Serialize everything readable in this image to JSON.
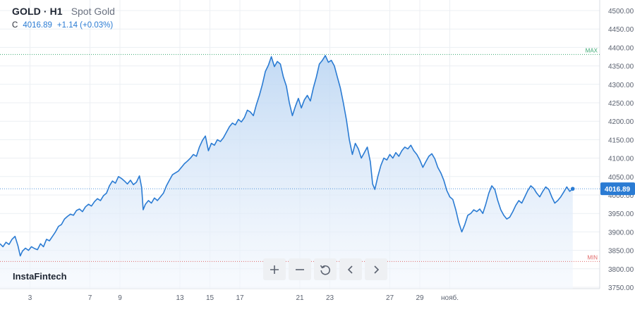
{
  "header": {
    "symbol": "GOLD · H1",
    "description": "Spot Gold",
    "close_label": "C",
    "close_value": "4016.89",
    "change": "+1.14 (+0.03%)"
  },
  "brand": {
    "name": "InstaFintech"
  },
  "toolbar": {
    "buttons": [
      {
        "icon": "plus-icon"
      },
      {
        "icon": "minus-icon"
      },
      {
        "icon": "reset-icon"
      },
      {
        "icon": "chevron-left-icon"
      },
      {
        "icon": "chevron-right-icon"
      }
    ]
  },
  "colors": {
    "line": "#2a7bd3",
    "fill_top": "#bcd6f3",
    "fill_bottom": "#f3f7fd",
    "max": "#3aa872",
    "min": "#e06a6a",
    "grid": "#eceff3",
    "last_price_bg": "#2a7bd3"
  },
  "chart_data": {
    "type": "area",
    "title": "",
    "xlabel": "",
    "ylabel": "",
    "ylim": [
      3750,
      4500
    ],
    "y_ticks": [
      "4500.00",
      "4450.00",
      "4400.00",
      "4350.00",
      "4300.00",
      "4250.00",
      "4200.00",
      "4150.00",
      "4100.00",
      "4050.00",
      "4000.00",
      "3950.00",
      "3900.00",
      "3850.00",
      "3800.00",
      "3750.00"
    ],
    "x_ticks": [
      {
        "label": "3",
        "x": 3
      },
      {
        "label": "7",
        "x": 7
      },
      {
        "label": "9",
        "x": 9
      },
      {
        "label": "13",
        "x": 13
      },
      {
        "label": "15",
        "x": 15
      },
      {
        "label": "17",
        "x": 17
      },
      {
        "label": "21",
        "x": 21
      },
      {
        "label": "23",
        "x": 23
      },
      {
        "label": "27",
        "x": 27
      },
      {
        "label": "29",
        "x": 29
      },
      {
        "label": "нояб.",
        "x": 31
      }
    ],
    "max_label": "MAX",
    "max_value": 4381,
    "min_label": "MIN",
    "min_value": 3820,
    "last_value": 4016.89,
    "last_label": "4016.89",
    "grid": true,
    "series": [
      {
        "points": [
          [
            1.0,
            3868
          ],
          [
            1.2,
            3860
          ],
          [
            1.4,
            3872
          ],
          [
            1.6,
            3866
          ],
          [
            1.8,
            3880
          ],
          [
            2.0,
            3888
          ],
          [
            2.2,
            3862
          ],
          [
            2.35,
            3835
          ],
          [
            2.5,
            3848
          ],
          [
            2.7,
            3856
          ],
          [
            2.9,
            3850
          ],
          [
            3.1,
            3860
          ],
          [
            3.3,
            3855
          ],
          [
            3.5,
            3852
          ],
          [
            3.7,
            3868
          ],
          [
            3.9,
            3860
          ],
          [
            4.1,
            3880
          ],
          [
            4.3,
            3876
          ],
          [
            4.5,
            3888
          ],
          [
            4.7,
            3900
          ],
          [
            4.9,
            3915
          ],
          [
            5.1,
            3920
          ],
          [
            5.3,
            3935
          ],
          [
            5.5,
            3942
          ],
          [
            5.7,
            3948
          ],
          [
            5.9,
            3945
          ],
          [
            6.1,
            3958
          ],
          [
            6.3,
            3962
          ],
          [
            6.5,
            3955
          ],
          [
            6.7,
            3968
          ],
          [
            6.9,
            3975
          ],
          [
            7.1,
            3970
          ],
          [
            7.3,
            3982
          ],
          [
            7.5,
            3990
          ],
          [
            7.7,
            3985
          ],
          [
            7.9,
            3998
          ],
          [
            8.1,
            4005
          ],
          [
            8.3,
            4025
          ],
          [
            8.5,
            4038
          ],
          [
            8.7,
            4032
          ],
          [
            8.9,
            4050
          ],
          [
            9.1,
            4045
          ],
          [
            9.3,
            4038
          ],
          [
            9.5,
            4030
          ],
          [
            9.7,
            4040
          ],
          [
            9.9,
            4028
          ],
          [
            10.1,
            4035
          ],
          [
            10.3,
            4052
          ],
          [
            10.45,
            4020
          ],
          [
            10.55,
            3960
          ],
          [
            10.7,
            3975
          ],
          [
            10.9,
            3985
          ],
          [
            11.1,
            3978
          ],
          [
            11.3,
            3992
          ],
          [
            11.5,
            3985
          ],
          [
            11.7,
            3995
          ],
          [
            11.9,
            4005
          ],
          [
            12.1,
            4025
          ],
          [
            12.3,
            4040
          ],
          [
            12.5,
            4055
          ],
          [
            12.7,
            4060
          ],
          [
            12.9,
            4065
          ],
          [
            13.1,
            4075
          ],
          [
            13.3,
            4085
          ],
          [
            13.5,
            4092
          ],
          [
            13.7,
            4100
          ],
          [
            13.9,
            4110
          ],
          [
            14.1,
            4105
          ],
          [
            14.3,
            4130
          ],
          [
            14.5,
            4148
          ],
          [
            14.7,
            4160
          ],
          [
            14.9,
            4120
          ],
          [
            15.1,
            4140
          ],
          [
            15.3,
            4135
          ],
          [
            15.5,
            4150
          ],
          [
            15.7,
            4145
          ],
          [
            15.9,
            4155
          ],
          [
            16.1,
            4170
          ],
          [
            16.3,
            4185
          ],
          [
            16.5,
            4195
          ],
          [
            16.7,
            4190
          ],
          [
            16.9,
            4205
          ],
          [
            17.1,
            4198
          ],
          [
            17.3,
            4210
          ],
          [
            17.5,
            4230
          ],
          [
            17.7,
            4225
          ],
          [
            17.9,
            4215
          ],
          [
            18.1,
            4245
          ],
          [
            18.3,
            4270
          ],
          [
            18.5,
            4300
          ],
          [
            18.7,
            4335
          ],
          [
            18.9,
            4352
          ],
          [
            19.1,
            4375
          ],
          [
            19.3,
            4348
          ],
          [
            19.5,
            4362
          ],
          [
            19.7,
            4355
          ],
          [
            19.9,
            4320
          ],
          [
            20.1,
            4295
          ],
          [
            20.3,
            4250
          ],
          [
            20.5,
            4215
          ],
          [
            20.7,
            4240
          ],
          [
            20.9,
            4262
          ],
          [
            21.1,
            4236
          ],
          [
            21.3,
            4258
          ],
          [
            21.5,
            4270
          ],
          [
            21.7,
            4255
          ],
          [
            21.9,
            4290
          ],
          [
            22.1,
            4320
          ],
          [
            22.3,
            4355
          ],
          [
            22.5,
            4365
          ],
          [
            22.7,
            4378
          ],
          [
            22.9,
            4360
          ],
          [
            23.1,
            4365
          ],
          [
            23.3,
            4350
          ],
          [
            23.5,
            4320
          ],
          [
            23.7,
            4290
          ],
          [
            23.9,
            4250
          ],
          [
            24.1,
            4205
          ],
          [
            24.3,
            4150
          ],
          [
            24.5,
            4110
          ],
          [
            24.7,
            4140
          ],
          [
            24.9,
            4125
          ],
          [
            25.1,
            4100
          ],
          [
            25.3,
            4115
          ],
          [
            25.5,
            4130
          ],
          [
            25.7,
            4090
          ],
          [
            25.85,
            4030
          ],
          [
            26.0,
            4015
          ],
          [
            26.2,
            4050
          ],
          [
            26.4,
            4080
          ],
          [
            26.6,
            4100
          ],
          [
            26.8,
            4095
          ],
          [
            27.0,
            4110
          ],
          [
            27.2,
            4100
          ],
          [
            27.4,
            4115
          ],
          [
            27.6,
            4105
          ],
          [
            27.8,
            4120
          ],
          [
            28.0,
            4130
          ],
          [
            28.2,
            4125
          ],
          [
            28.4,
            4135
          ],
          [
            28.6,
            4120
          ],
          [
            28.8,
            4110
          ],
          [
            29.0,
            4095
          ],
          [
            29.2,
            4075
          ],
          [
            29.4,
            4090
          ],
          [
            29.6,
            4105
          ],
          [
            29.8,
            4112
          ],
          [
            30.0,
            4098
          ],
          [
            30.2,
            4075
          ],
          [
            30.4,
            4060
          ],
          [
            30.6,
            4040
          ],
          [
            30.8,
            4012
          ],
          [
            31.0,
            3995
          ],
          [
            31.2,
            3988
          ],
          [
            31.4,
            3960
          ],
          [
            31.6,
            3925
          ],
          [
            31.8,
            3900
          ],
          [
            32.0,
            3920
          ],
          [
            32.2,
            3945
          ],
          [
            32.4,
            3950
          ],
          [
            32.6,
            3960
          ],
          [
            32.8,
            3955
          ],
          [
            33.0,
            3962
          ],
          [
            33.2,
            3950
          ],
          [
            33.4,
            3975
          ],
          [
            33.6,
            4005
          ],
          [
            33.8,
            4025
          ],
          [
            34.0,
            4015
          ],
          [
            34.2,
            3985
          ],
          [
            34.4,
            3960
          ],
          [
            34.6,
            3945
          ],
          [
            34.8,
            3935
          ],
          [
            35.0,
            3940
          ],
          [
            35.2,
            3955
          ],
          [
            35.4,
            3972
          ],
          [
            35.6,
            3985
          ],
          [
            35.8,
            3978
          ],
          [
            36.0,
            3995
          ],
          [
            36.2,
            4012
          ],
          [
            36.4,
            4025
          ],
          [
            36.6,
            4018
          ],
          [
            36.8,
            4005
          ],
          [
            37.0,
            3995
          ],
          [
            37.2,
            4010
          ],
          [
            37.4,
            4022
          ],
          [
            37.6,
            4015
          ],
          [
            37.8,
            3995
          ],
          [
            38.0,
            3978
          ],
          [
            38.2,
            3985
          ],
          [
            38.4,
            3995
          ],
          [
            38.6,
            4008
          ],
          [
            38.8,
            4022
          ],
          [
            39.0,
            4010
          ],
          [
            39.2,
            4016.89
          ]
        ]
      }
    ]
  }
}
